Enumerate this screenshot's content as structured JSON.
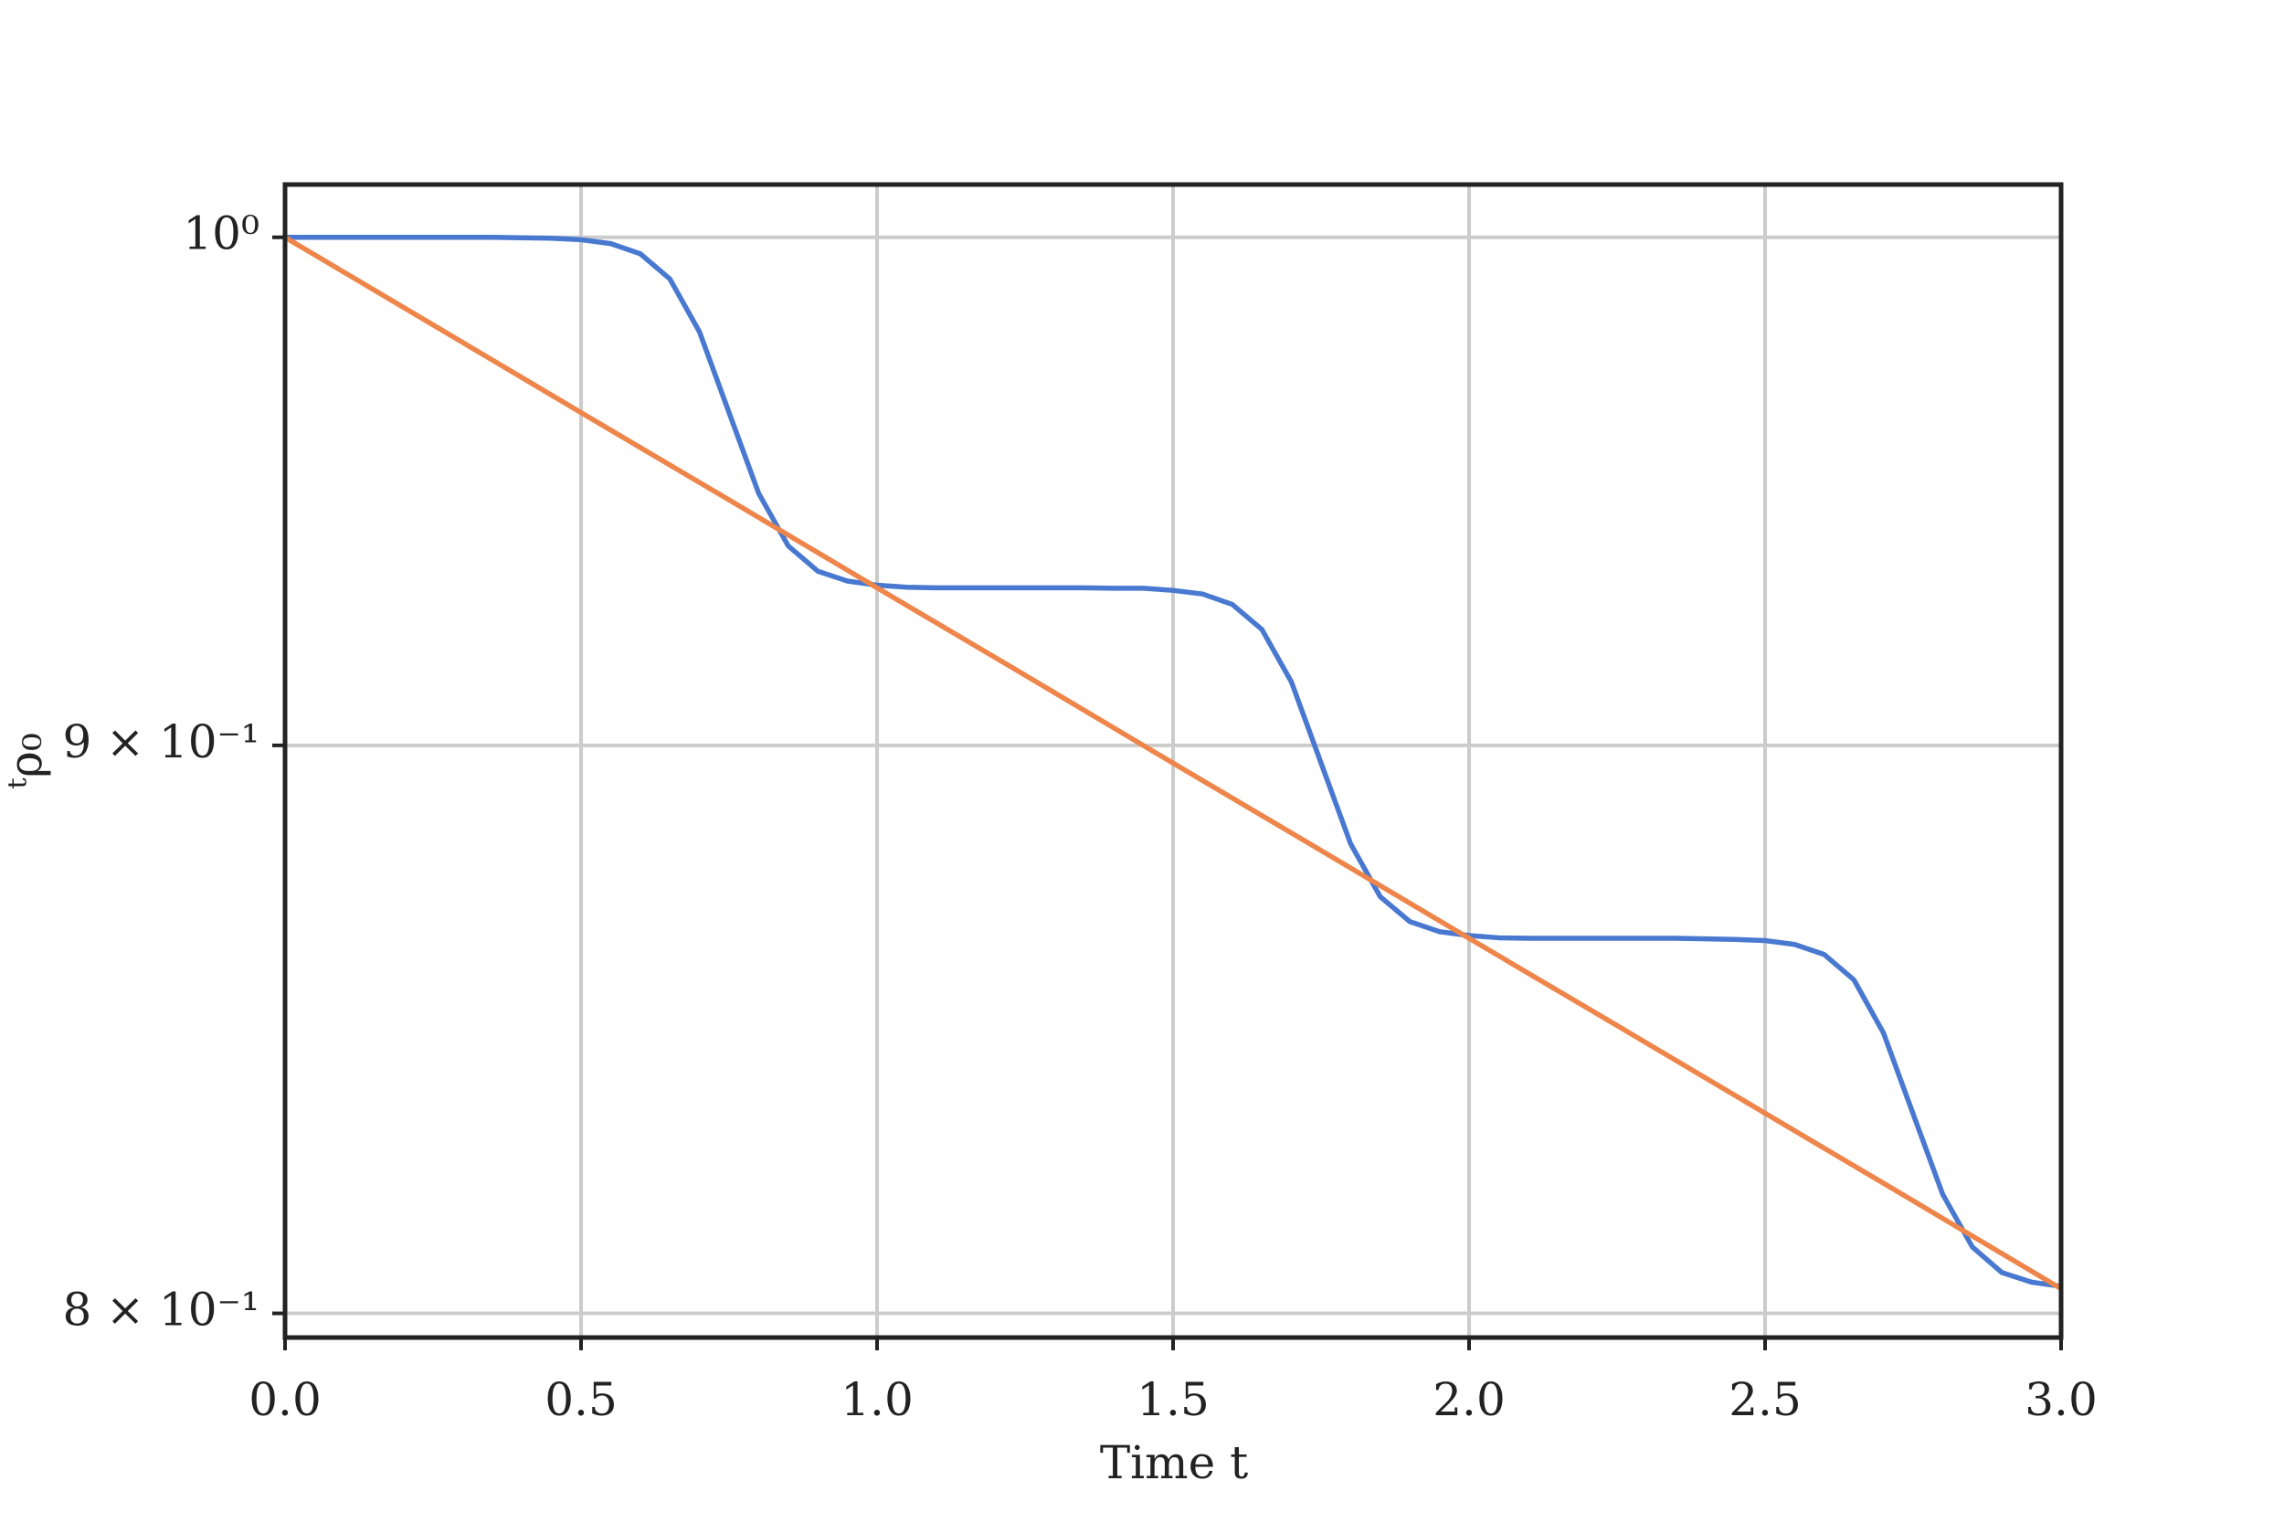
{
  "chart_data": {
    "type": "line",
    "xlabel": "Time t",
    "ylabel": "ᵗρ₀",
    "xlim": [
      0,
      3
    ],
    "xticks": [
      {
        "value": 0,
        "label": "0.0"
      },
      0.5,
      {
        "value": 1,
        "label": "1.0"
      },
      1.5,
      {
        "value": 2,
        "label": "2.0"
      },
      2.5,
      {
        "value": 3,
        "label": "3.0"
      }
    ],
    "ylim": [
      0.796,
      1.011
    ],
    "yscale": "log",
    "yticks": [
      {
        "value": 1,
        "label": "10⁰"
      },
      {
        "value": 0.9,
        "label": "9 × 10⁻¹"
      },
      {
        "value": 0.8,
        "label": "8 × 10⁻¹"
      }
    ],
    "grid": true,
    "series": [
      {
        "color": "#4878d0",
        "x": [
          0,
          0.05,
          0.1,
          0.15,
          0.2,
          0.25,
          0.3,
          0.35,
          0.4,
          0.45,
          0.5,
          0.55,
          0.6,
          0.65,
          0.7,
          0.75,
          0.8,
          0.85,
          0.9,
          0.95,
          1,
          1.05,
          1.1,
          1.15,
          1.2,
          1.25,
          1.3,
          1.35,
          1.4,
          1.45,
          1.5,
          1.55,
          1.6,
          1.65,
          1.7,
          1.75,
          1.8,
          1.85,
          1.9,
          1.95,
          2,
          2.05,
          2.1,
          2.15,
          2.2,
          2.25,
          2.3,
          2.35,
          2.4,
          2.45,
          2.5,
          2.55,
          2.6,
          2.65,
          2.7,
          2.75,
          2.8,
          2.85,
          2.9,
          2.95,
          3
        ],
        "values": [
          1,
          1,
          1,
          1,
          1,
          1,
          1,
          1,
          0.9999,
          0.9998,
          0.9995,
          0.9987,
          0.9966,
          0.9914,
          0.9806,
          0.9643,
          0.9483,
          0.938,
          0.9331,
          0.9312,
          0.9304,
          0.93,
          0.9299,
          0.9299,
          0.9299,
          0.9299,
          0.9299,
          0.9299,
          0.9298,
          0.9298,
          0.9294,
          0.9287,
          0.9267,
          0.9219,
          0.9119,
          0.8967,
          0.8818,
          0.8722,
          0.8677,
          0.8659,
          0.8652,
          0.8648,
          0.8647,
          0.8647,
          0.8647,
          0.8647,
          0.8647,
          0.8647,
          0.8646,
          0.8645,
          0.8643,
          0.8636,
          0.8618,
          0.8573,
          0.8479,
          0.8338,
          0.82,
          0.8111,
          0.8068,
          0.8052,
          0.8045
        ]
      },
      {
        "color": "#ee854a",
        "x": [
          0,
          0.25,
          0.5,
          0.75,
          1,
          1.25,
          1.5,
          1.75,
          2,
          2.25,
          2.5,
          2.75,
          3
        ],
        "values": [
          1,
          0.982,
          0.9643,
          0.947,
          0.9299,
          0.9132,
          0.8967,
          0.8806,
          0.8647,
          0.8492,
          0.8339,
          0.8189,
          0.8041
        ]
      }
    ]
  }
}
